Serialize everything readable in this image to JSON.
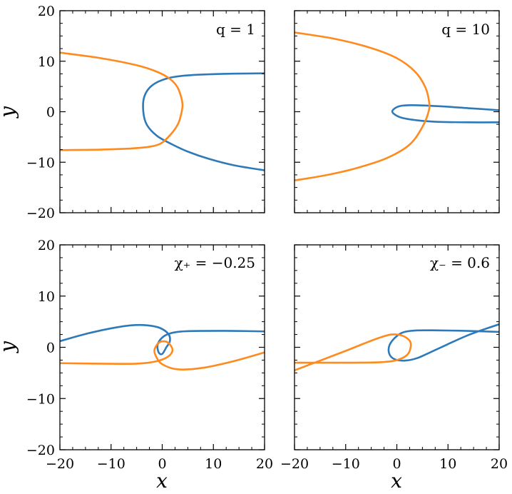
{
  "colors": {
    "blue": "#2e7ab8",
    "orange": "#ff8a1e",
    "frame": "#000000"
  },
  "chart_data": [
    {
      "type": "line",
      "title": "",
      "annotation": "q = 1",
      "xlabel": "",
      "ylabel": "y",
      "xlim": [
        -20,
        20
      ],
      "ylim": [
        -20,
        20
      ],
      "xticks": [
        -20,
        -10,
        0,
        10,
        20
      ],
      "yticks": [
        -20,
        -10,
        0,
        10,
        20
      ],
      "xtick_labels_shown": false,
      "ytick_labels_shown": true,
      "grid": false,
      "series": [
        {
          "color": "blue",
          "x": [
            20,
            12,
            5,
            1,
            -2,
            -3.5,
            -3.7,
            -3,
            -1,
            2,
            5,
            9,
            14,
            20
          ],
          "y": [
            7.6,
            7.5,
            7.2,
            6.6,
            5.2,
            3,
            0,
            -2.6,
            -4.8,
            -6.5,
            -7.9,
            -9.3,
            -10.6,
            -11.6
          ]
        },
        {
          "color": "orange",
          "x": [
            -20,
            -12,
            -5,
            -1,
            1.5,
            3,
            3.9,
            3.8,
            3,
            1,
            -1,
            -5,
            -12,
            -20
          ],
          "y": [
            11.7,
            10.6,
            9.2,
            7.9,
            6.5,
            4.8,
            2,
            0,
            -2.6,
            -5.2,
            -6.6,
            -7.2,
            -7.5,
            -7.6
          ]
        }
      ]
    },
    {
      "type": "line",
      "title": "",
      "annotation": "q = 10",
      "xlabel": "",
      "ylabel": "",
      "xlim": [
        -20,
        20
      ],
      "ylim": [
        -20,
        20
      ],
      "xticks": [
        -20,
        -10,
        0,
        10,
        20
      ],
      "yticks": [
        -20,
        -10,
        0,
        10,
        20
      ],
      "xtick_labels_shown": false,
      "ytick_labels_shown": false,
      "grid": false,
      "series": [
        {
          "color": "blue",
          "x": [
            20,
            14,
            8,
            3,
            0.5,
            -0.8,
            -0.6,
            1,
            4,
            8,
            14,
            20
          ],
          "y": [
            0.3,
            0.7,
            1.1,
            1.3,
            1.1,
            0.3,
            -0.4,
            -1.2,
            -1.7,
            -2,
            -2.1,
            -2.1
          ]
        },
        {
          "color": "orange",
          "x": [
            -20,
            -12,
            -5,
            0,
            3.5,
            5.5,
            6.3,
            6.2,
            5,
            2.5,
            -2,
            -8,
            -14,
            -20
          ],
          "y": [
            15.7,
            14.4,
            12.6,
            10.6,
            8,
            5,
            2,
            0,
            -3,
            -6.5,
            -9.2,
            -11.2,
            -12.6,
            -13.6
          ]
        }
      ]
    },
    {
      "type": "line",
      "title": "",
      "annotation": "χ₊ = −0.25",
      "xlabel": "x",
      "ylabel": "y",
      "xlim": [
        -20,
        20
      ],
      "ylim": [
        -20,
        20
      ],
      "xticks": [
        -20,
        -10,
        0,
        10,
        20
      ],
      "yticks": [
        -20,
        -10,
        0,
        10,
        20
      ],
      "xtick_labels_shown": true,
      "ytick_labels_shown": true,
      "grid": false,
      "series": [
        {
          "color": "blue",
          "x": [
            -20,
            -15,
            -10,
            -6,
            -3,
            -0.5,
            1.2,
            1.5,
            0.8,
            0,
            -0.7,
            -0.9,
            0,
            1.5,
            4,
            8,
            14,
            20
          ],
          "y": [
            1.2,
            2.6,
            3.7,
            4.3,
            4.3,
            3.8,
            2.6,
            1.2,
            0,
            -1.3,
            -1,
            0.5,
            1.9,
            2.7,
            3.1,
            3.2,
            3.2,
            3.1
          ]
        },
        {
          "color": "orange",
          "x": [
            20,
            14,
            8,
            3,
            0,
            -1.2,
            -1.5,
            -0.5,
            1,
            2,
            1.3,
            -1,
            -5,
            -12,
            -20
          ],
          "y": [
            -1,
            -2.7,
            -4,
            -4.3,
            -3.3,
            -1.8,
            -0.4,
            1,
            1,
            -0.4,
            -1.7,
            -2.7,
            -3.2,
            -3.2,
            -3.1
          ]
        }
      ]
    },
    {
      "type": "line",
      "title": "",
      "annotation": "χ₋ = 0.6",
      "xlabel": "x",
      "ylabel": "",
      "xlim": [
        -20,
        20
      ],
      "ylim": [
        -20,
        20
      ],
      "xticks": [
        -20,
        -10,
        0,
        10,
        20
      ],
      "yticks": [
        -20,
        -10,
        0,
        10,
        20
      ],
      "xtick_labels_shown": true,
      "ytick_labels_shown": false,
      "grid": false,
      "series": [
        {
          "color": "blue",
          "x": [
            20,
            14,
            8,
            4,
            1.5,
            0,
            -1.4,
            -1.5,
            -0.5,
            1.5,
            4,
            8,
            14,
            20
          ],
          "y": [
            3,
            3.2,
            3.3,
            3.3,
            3,
            2.2,
            0.5,
            -1.2,
            -2.3,
            -2.6,
            -2.1,
            -0.3,
            2.4,
            4.5
          ]
        },
        {
          "color": "orange",
          "x": [
            -20,
            -15,
            -10,
            -6,
            -3,
            -1,
            1,
            2.5,
            2.7,
            2,
            0,
            -3,
            -8,
            -14,
            -20
          ],
          "y": [
            -4.5,
            -2.6,
            -0.7,
            0.9,
            2,
            2.5,
            2.3,
            1.3,
            0,
            -1.5,
            -2.5,
            -2.9,
            -3,
            -3,
            -3
          ]
        }
      ]
    }
  ]
}
